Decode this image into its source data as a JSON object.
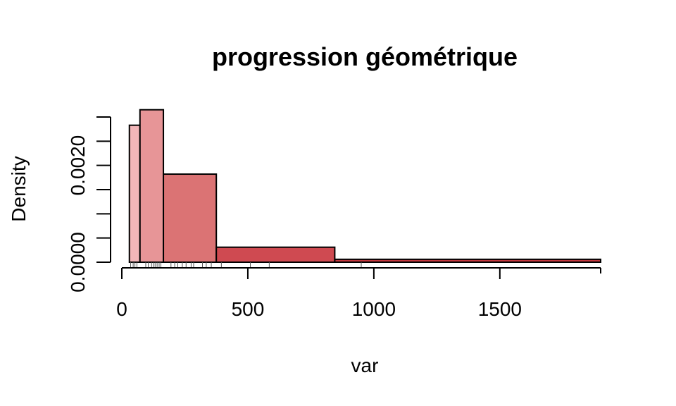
{
  "chart_data": {
    "type": "bar",
    "title": "progression géométrique",
    "xlabel": "var",
    "ylabel": "Density",
    "xlim": [
      0,
      1900
    ],
    "ylim": [
      0,
      0.003
    ],
    "x_ticks": [
      0,
      500,
      1000,
      1500
    ],
    "x_tick_labels": [
      "0",
      "500",
      "1000",
      "1500"
    ],
    "y_ticks": [
      0,
      0.0005,
      0.001,
      0.0015,
      0.002,
      0.0025,
      0.003
    ],
    "y_tick_labels": [
      "0.0000",
      "",
      "",
      "",
      "0.0020",
      "",
      ""
    ],
    "bins": [
      {
        "start": 30,
        "end": 72,
        "density": 0.00283,
        "color": "#f2b6b9"
      },
      {
        "start": 72,
        "end": 165,
        "density": 0.00315,
        "color": "#e79597"
      },
      {
        "start": 165,
        "end": 375,
        "density": 0.00182,
        "color": "#db7374"
      },
      {
        "start": 375,
        "end": 845,
        "density": 0.00031,
        "color": "#cf4a51"
      },
      {
        "start": 845,
        "end": 1900,
        "density": 6e-05,
        "color": "#c2383e"
      }
    ],
    "rug": [
      35,
      45,
      52,
      60,
      95,
      105,
      118,
      125,
      132,
      140,
      148,
      155,
      195,
      210,
      222,
      240,
      255,
      275,
      285,
      320,
      335,
      355,
      395,
      510,
      585,
      950
    ]
  }
}
